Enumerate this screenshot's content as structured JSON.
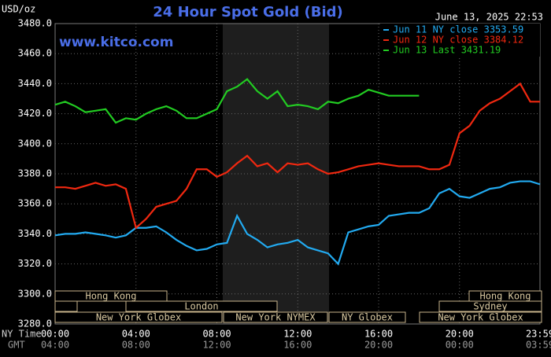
{
  "chart_data": {
    "type": "line",
    "title": "24 Hour Spot Gold (Bid)",
    "y_unit_label": "USD/oz",
    "timestamp": "June 13, 2025 22:53",
    "watermark": "www.kitco.com",
    "x_row_label": "NY Time",
    "gmt_row_label": "GMT",
    "x": [
      0,
      0.5,
      1,
      1.5,
      2,
      2.5,
      3,
      3.5,
      4,
      4.5,
      5,
      5.5,
      6,
      6.5,
      7,
      7.5,
      8,
      8.5,
      9,
      9.5,
      10,
      10.5,
      11,
      11.5,
      12,
      12.5,
      13,
      13.5,
      14,
      14.5,
      15,
      15.5,
      16,
      16.5,
      17,
      17.5,
      18,
      18.5,
      19,
      19.5,
      20,
      20.5,
      21,
      21.5,
      22,
      22.5,
      23,
      23.5,
      23.98
    ],
    "xlim": [
      0,
      23.98
    ],
    "xticks": [
      {
        "value": 0,
        "label": "00:00"
      },
      {
        "value": 4,
        "label": "04:00"
      },
      {
        "value": 8,
        "label": "08:00"
      },
      {
        "value": 12,
        "label": "12:00"
      },
      {
        "value": 16,
        "label": "16:00"
      },
      {
        "value": 20,
        "label": "20:00"
      },
      {
        "value": 23.98,
        "label": "23:59"
      }
    ],
    "gmt_tick_labels": [
      "04:00",
      "08:00",
      "12:00",
      "16:00",
      "20:00",
      "00:00",
      "03:59"
    ],
    "ylim": [
      3280,
      3480
    ],
    "yticks": [
      {
        "value": 3280,
        "label": "3280.0"
      },
      {
        "value": 3300,
        "label": "3300.0"
      },
      {
        "value": 3320,
        "label": "3320.0"
      },
      {
        "value": 3340,
        "label": "3340.0"
      },
      {
        "value": 3360,
        "label": "3360.0"
      },
      {
        "value": 3380,
        "label": "3380.0"
      },
      {
        "value": 3400,
        "label": "3400.0"
      },
      {
        "value": 3420,
        "label": "3420.0"
      },
      {
        "value": 3440,
        "label": "3440.0"
      },
      {
        "value": 3460,
        "label": "3460.0"
      },
      {
        "value": 3480,
        "label": "3480.0"
      }
    ],
    "grid": true,
    "legend": "top-right",
    "series": [
      {
        "name": "Jun 11 NY close 3353.59",
        "color": "#22aaf0",
        "values": [
          3339,
          3340,
          3340,
          3341,
          3340,
          3339,
          3337.5,
          3339,
          3344,
          3344,
          3345,
          3341,
          3336,
          3332,
          3329,
          3330,
          3333,
          3334,
          3352,
          3340,
          3336,
          3331,
          3333,
          3334,
          3336,
          3331,
          3329,
          3327,
          3320,
          3341,
          3343,
          3345,
          3346,
          3352,
          3353,
          3354,
          3354,
          3357,
          3367,
          3370,
          3365,
          3364,
          3367,
          3370,
          3371,
          3374,
          3375,
          3375,
          3373
        ]
      },
      {
        "name": "Jun 12 NY close 3384.12",
        "color": "#f02810",
        "values": [
          3371,
          3371,
          3370,
          3372,
          3374,
          3372,
          3373,
          3370,
          3344,
          3350,
          3358,
          3360,
          3362,
          3370,
          3383,
          3383,
          3378,
          3381,
          3387,
          3392,
          3385,
          3387,
          3381,
          3387,
          3386,
          3387,
          3383,
          3380,
          3381,
          3383,
          3385,
          3386,
          3387,
          3386,
          3385,
          3385,
          3385,
          3383,
          3383,
          3386,
          3407,
          3412,
          3422,
          3427,
          3430,
          3435,
          3440,
          3428,
          3428
        ]
      },
      {
        "name": "Jun 13 Last 3431.19",
        "color": "#22cc22",
        "values": [
          3426,
          3428,
          3425,
          3421,
          3422,
          3423,
          3414,
          3417,
          3416,
          3420,
          3423,
          3425,
          3422,
          3417,
          3417,
          3420,
          3423,
          3435,
          3438,
          3443,
          3435,
          3430,
          3435,
          3425,
          3426,
          3425,
          3423,
          3428,
          3427,
          3430,
          3432,
          3436,
          3434,
          3432,
          3432,
          3432,
          3432,
          null,
          null,
          null,
          null,
          null,
          null,
          null,
          null,
          null,
          null,
          null,
          null
        ]
      }
    ],
    "sessions": [
      "Hong Kong",
      "Hong Kong",
      "London",
      "Sydney",
      "New York Globex",
      "New York NYMEX",
      "NY Globex",
      "New York Globex"
    ]
  }
}
